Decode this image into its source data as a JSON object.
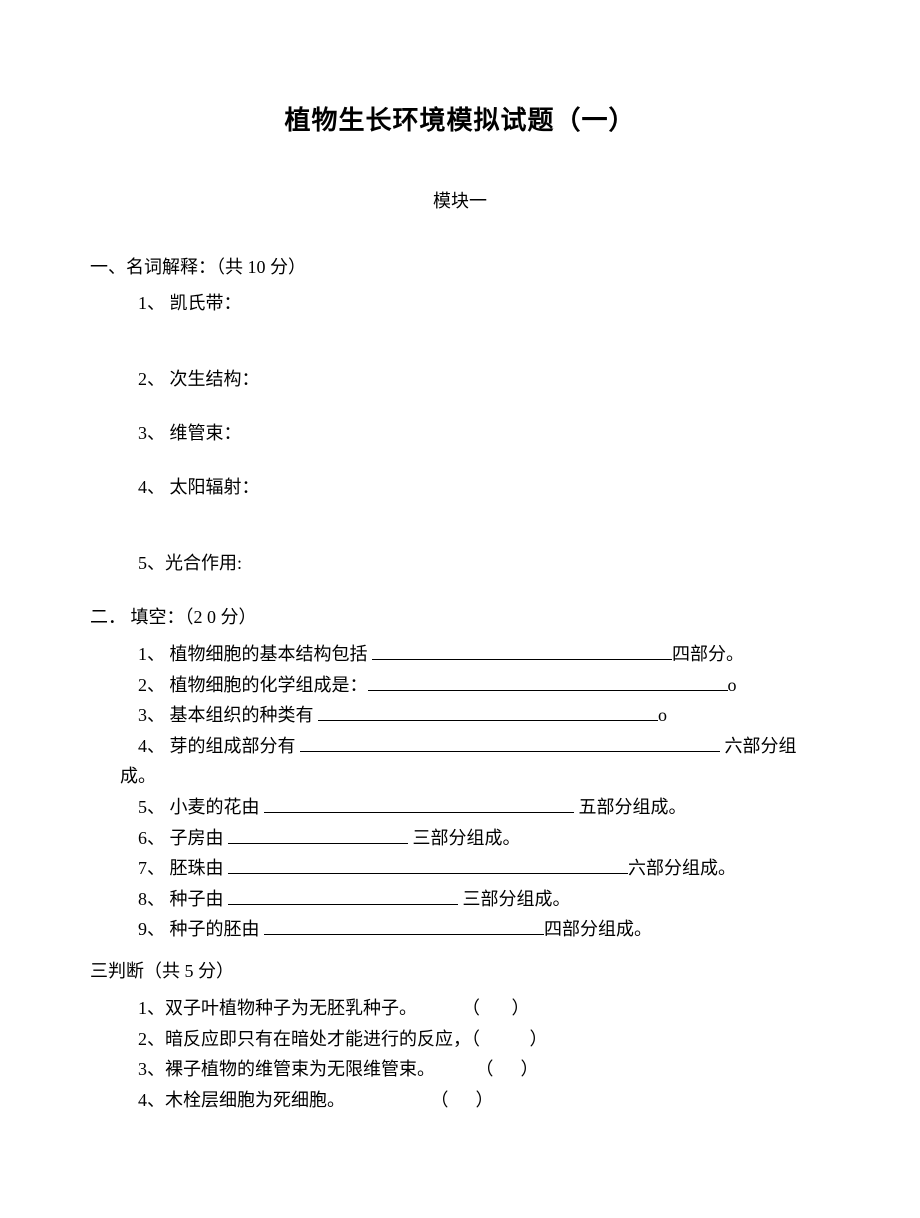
{
  "title": "植物生长环境模拟试题（一）",
  "subtitle": "模块一",
  "section1": {
    "header": "一、名词解释：（共 10 分）",
    "items": [
      "1、 凯氏带：",
      "2、 次生结构：",
      "3、 维管束：",
      "4、 太阳辐射：",
      "5、光合作用:"
    ]
  },
  "section2": {
    "header": "二． 填空：（2 0 分）",
    "q1_pre": "1、 植物细胞的基本结构包括 ",
    "q1_post": "四部分。",
    "q2_pre": "2、 植物细胞的化学组成是：",
    "q2_post": "o",
    "q3_pre": "3、 基本组织的种类有 ",
    "q3_post": "o",
    "q4_pre": "4、 芽的组成部分有 ",
    "q4_post": " 六部分组",
    "q4_cont": "成。",
    "q5_pre": "5、 小麦的花由 ",
    "q5_post": " 五部分组成。",
    "q6_pre": "6、 子房由 ",
    "q6_post": " 三部分组成。",
    "q7_pre": "7、 胚珠由 ",
    "q7_post": "六部分组成。",
    "q8_pre": "8、 种子由 ",
    "q8_post": " 三部分组成。",
    "q9_pre": "9、 种子的胚由 ",
    "q9_post": "四部分组成。"
  },
  "section3": {
    "header": "三判断（共 5 分）",
    "q1": "1、双子叶植物种子为无胚乳种子。          （       ）",
    "q2": "2、暗反应即只有在暗处才能进行的反应，（           ）",
    "q3": "3、裸子植物的维管束为无限维管束。         （      ）",
    "q4": "4、木栓层细胞为死细胞。                   （      ）"
  },
  "blanks": {
    "w1": 300,
    "w2": 360,
    "w3": 340,
    "w4": 420,
    "w5": 310,
    "w6": 180,
    "w7": 400,
    "w8": 230,
    "w9": 280
  }
}
